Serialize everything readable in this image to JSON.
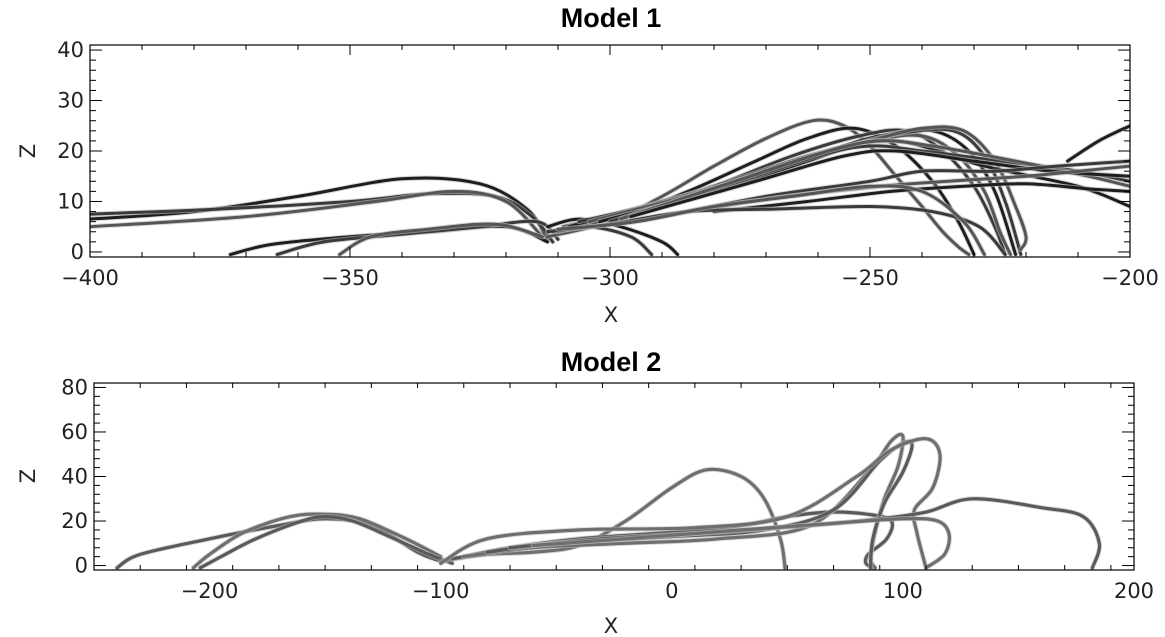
{
  "chart_data": [
    {
      "type": "line",
      "title": "Model 1",
      "xlabel": "X",
      "ylabel": "Z",
      "xlim": [
        -400,
        -200
      ],
      "ylim": [
        -1,
        41
      ],
      "xticks": [
        -400,
        -350,
        -300,
        -250,
        -200
      ],
      "xtick_labels": [
        "−400",
        "−350",
        "−300",
        "−250",
        "−200"
      ],
      "yticks": [
        0,
        10,
        20,
        30,
        40
      ],
      "ytick_labels": [
        "0",
        "10",
        "20",
        "30",
        "40"
      ],
      "line_color": "#2a2a2a",
      "series": [
        {
          "x": [
            -400,
            -380,
            -360,
            -340,
            -325,
            -316,
            -312
          ],
          "y": [
            6.5,
            8,
            11,
            14.5,
            13.5,
            8.5,
            2.5
          ]
        },
        {
          "x": [
            -400,
            -375,
            -350,
            -335,
            -322,
            -315,
            -311
          ],
          "y": [
            7.5,
            8.5,
            10,
            11.5,
            11,
            7,
            2
          ]
        },
        {
          "x": [
            -400,
            -370,
            -345,
            -330,
            -320,
            -313
          ],
          "y": [
            5,
            7,
            10,
            12,
            10,
            3
          ]
        },
        {
          "x": [
            -373,
            -365,
            -350,
            -335,
            -320,
            -312
          ],
          "y": [
            -0.5,
            1.5,
            3,
            4,
            5,
            2
          ]
        },
        {
          "x": [
            -364,
            -355,
            -340,
            -325,
            -314,
            -310
          ],
          "y": [
            -0.5,
            2,
            3.5,
            5,
            6,
            2.5
          ]
        },
        {
          "x": [
            -352,
            -346,
            -335,
            -322,
            -313
          ],
          "y": [
            -0.5,
            3,
            4.5,
            5.5,
            3
          ]
        },
        {
          "x": [
            -312,
            -306,
            -298,
            -290,
            -287
          ],
          "y": [
            5,
            6.5,
            5,
            2,
            -0.5
          ]
        },
        {
          "x": [
            -312,
            -304,
            -296,
            -292
          ],
          "y": [
            4,
            5,
            3,
            -0.5
          ]
        },
        {
          "x": [
            -312,
            -300,
            -290,
            -280,
            -270,
            -261,
            -255,
            -250,
            -245,
            -240,
            -236,
            -233,
            -231
          ],
          "y": [
            3,
            6,
            11,
            17,
            22.5,
            26,
            25,
            21,
            15,
            9,
            4,
            1,
            -0.5
          ]
        },
        {
          "x": [
            -311,
            -298,
            -285,
            -272,
            -262,
            -253,
            -245,
            -238,
            -233,
            -230
          ],
          "y": [
            4,
            7,
            12,
            18,
            22.5,
            24.5,
            21,
            14,
            6,
            -0.5
          ]
        },
        {
          "x": [
            -310,
            -295,
            -280,
            -265,
            -252,
            -243,
            -236,
            -230,
            -226,
            -224
          ],
          "y": [
            4,
            8,
            13,
            19,
            23,
            24,
            20,
            13,
            5,
            -0.5
          ]
        },
        {
          "x": [
            -309,
            -293,
            -277,
            -262,
            -250,
            -240,
            -233,
            -228,
            -225,
            -223
          ],
          "y": [
            5,
            9,
            14,
            19,
            22,
            23,
            19,
            12,
            4,
            -0.5
          ]
        },
        {
          "x": [
            -308,
            -290,
            -272,
            -258,
            -248,
            -238,
            -231,
            -226,
            -222
          ],
          "y": [
            5,
            10,
            15,
            20,
            23,
            24,
            20,
            12,
            -0.5
          ]
        },
        {
          "x": [
            -306,
            -285,
            -268,
            -254,
            -244,
            -234,
            -228,
            -224,
            -221
          ],
          "y": [
            6,
            11,
            16,
            21,
            23.5,
            24,
            19,
            10,
            -0.5
          ]
        },
        {
          "x": [
            -304,
            -282,
            -264,
            -250,
            -240,
            -232,
            -226,
            -222,
            -220,
            -221
          ],
          "y": [
            6,
            12,
            18,
            22,
            24.5,
            24,
            18,
            9,
            3,
            0.5
          ]
        },
        {
          "x": [
            -302,
            -280,
            -262,
            -252,
            -246,
            -240,
            -228,
            -210,
            -200
          ],
          "y": [
            6,
            12,
            18,
            21.5,
            22,
            21,
            17,
            13,
            9
          ]
        },
        {
          "x": [
            -300,
            -278,
            -260,
            -250,
            -240,
            -225,
            -210,
            -200
          ],
          "y": [
            6,
            13,
            19,
            21,
            20,
            18,
            16,
            14
          ]
        },
        {
          "x": [
            -298,
            -276,
            -258,
            -248,
            -238,
            -222,
            -208,
            -200
          ],
          "y": [
            6.5,
            14,
            20,
            22,
            21,
            18,
            15,
            13
          ]
        },
        {
          "x": [
            -296,
            -272,
            -255,
            -245,
            -230,
            -215,
            -200
          ],
          "y": [
            7,
            14,
            19,
            20,
            18,
            16,
            15
          ]
        },
        {
          "x": [
            -290,
            -270,
            -250,
            -240,
            -226,
            -214,
            -200
          ],
          "y": [
            7,
            11,
            14,
            16,
            16,
            17,
            18
          ]
        },
        {
          "x": [
            -285,
            -266,
            -248,
            -235,
            -220,
            -210,
            -200
          ],
          "y": [
            8,
            11,
            13,
            14,
            15,
            16,
            17
          ]
        },
        {
          "x": [
            -280,
            -262,
            -246,
            -232,
            -220,
            -208,
            -200
          ],
          "y": [
            8,
            10,
            12,
            13,
            13.5,
            12.5,
            12
          ]
        },
        {
          "x": [
            -312,
            -300,
            -285,
            -268,
            -250,
            -238,
            -229,
            -224
          ],
          "y": [
            4,
            5.5,
            8,
            8.5,
            9,
            8,
            5,
            -0.5
          ]
        },
        {
          "x": [
            -310,
            -295,
            -280,
            -265,
            -250,
            -240,
            -232,
            -228
          ],
          "y": [
            4.5,
            6,
            9,
            11,
            13,
            12,
            6,
            -0.5
          ]
        },
        {
          "x": [
            -212,
            -206,
            -200
          ],
          "y": [
            18,
            22,
            25
          ]
        }
      ]
    },
    {
      "type": "line",
      "title": "Model 2",
      "xlabel": "X",
      "ylabel": "Z",
      "xlim": [
        -250,
        200
      ],
      "ylim": [
        -2,
        82
      ],
      "xticks": [
        -200,
        -100,
        0,
        100,
        200
      ],
      "xtick_labels": [
        "−200",
        "−100",
        "0",
        "100",
        "200"
      ],
      "yticks": [
        0,
        20,
        40,
        60,
        80
      ],
      "ytick_labels": [
        "0",
        "20",
        "40",
        "60",
        "80"
      ],
      "line_color": "#5a5a5a",
      "series": [
        {
          "x": [
            -240,
            -230,
            -200,
            -170,
            -150,
            -130,
            -110,
            -100
          ],
          "y": [
            -1,
            5,
            12,
            18,
            21,
            18,
            6,
            2
          ]
        },
        {
          "x": [
            -207,
            -200,
            -185,
            -165,
            -150,
            -135,
            -115,
            -100
          ],
          "y": [
            -1,
            5,
            15,
            22,
            23,
            21,
            12,
            4
          ]
        },
        {
          "x": [
            -204,
            -195,
            -180,
            -160,
            -150,
            -138,
            -120,
            -105,
            -95
          ],
          "y": [
            -1,
            4,
            12,
            20,
            22,
            20,
            12,
            5,
            1
          ]
        },
        {
          "x": [
            -100,
            -80,
            -60,
            -40,
            -20,
            0,
            15,
            30,
            40,
            47,
            49
          ],
          "y": [
            2,
            5,
            6,
            9,
            20,
            35,
            43,
            40,
            30,
            12,
            -1
          ]
        },
        {
          "x": [
            -95,
            -70,
            -40,
            0,
            30,
            50,
            68,
            85,
            95,
            93,
            85,
            84,
            87
          ],
          "y": [
            3,
            8,
            12,
            15,
            18,
            22,
            24,
            23,
            20,
            12,
            5,
            1,
            -1
          ]
        },
        {
          "x": [
            -90,
            -60,
            -20,
            20,
            60,
            85,
            95,
            100,
            98,
            92,
            88,
            86,
            88
          ],
          "y": [
            4,
            8,
            10,
            12,
            18,
            42,
            56,
            58,
            45,
            30,
            15,
            3,
            -1
          ]
        },
        {
          "x": [
            -80,
            -50,
            0,
            40,
            70,
            90,
            100,
            104,
            100,
            92,
            87,
            86
          ],
          "y": [
            6,
            10,
            13,
            16,
            25,
            47,
            55,
            54,
            42,
            28,
            12,
            -1
          ]
        },
        {
          "x": [
            -100,
            -80,
            -40,
            10,
            50,
            80,
            95,
            110,
            116,
            113,
            105,
            106,
            110
          ],
          "y": [
            1,
            12,
            16,
            17,
            22,
            40,
            52,
            57,
            50,
            35,
            25,
            15,
            -1
          ]
        },
        {
          "x": [
            -70,
            -30,
            20,
            60,
            90,
            110,
            130,
            160,
            178,
            185,
            182
          ],
          "y": [
            8,
            12,
            15,
            18,
            21,
            24,
            30,
            26,
            22,
            10,
            -1
          ]
        },
        {
          "x": [
            -60,
            -20,
            30,
            70,
            100,
            115,
            120,
            118,
            110
          ],
          "y": [
            9,
            12,
            16,
            19,
            21,
            20,
            14,
            5,
            -1
          ]
        }
      ]
    }
  ]
}
